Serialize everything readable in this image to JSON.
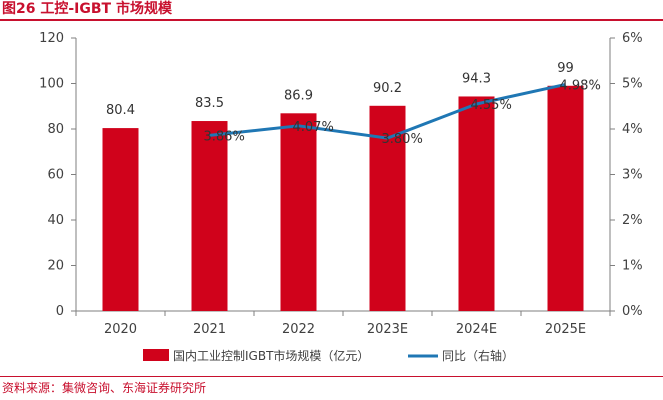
{
  "title": "图26  工控-IGBT 市场规模",
  "source": "资料来源：集微咨询、东海证券研究所",
  "colors": {
    "accent": "#c8102e",
    "bar": "#d0021b",
    "line": "#1f77b4",
    "axis": "#7f7f7f",
    "text": "#404040"
  },
  "chart_data": {
    "type": "bar",
    "categories": [
      "2020",
      "2021",
      "2022",
      "2023E",
      "2024E",
      "2025E"
    ],
    "series": [
      {
        "name": "国内工业控制IGBT市场规模（亿元）",
        "type": "bar",
        "axis": "left",
        "values": [
          80.4,
          83.5,
          86.9,
          90.2,
          94.3,
          99
        ],
        "labels": [
          "80.4",
          "83.5",
          "86.9",
          "90.2",
          "94.3",
          "99"
        ]
      },
      {
        "name": "同比（右轴）",
        "type": "line",
        "axis": "right",
        "values": [
          null,
          3.86,
          4.07,
          3.8,
          4.55,
          4.98
        ],
        "labels": [
          "",
          "3.86%",
          "4.07%",
          "3.80%",
          "4.55%",
          "4.98%"
        ]
      }
    ],
    "y_left": {
      "min": 0,
      "max": 120,
      "ticks": [
        0,
        20,
        40,
        60,
        80,
        100,
        120
      ],
      "tick_labels": [
        "0",
        "20",
        "40",
        "60",
        "80",
        "100",
        "120"
      ]
    },
    "y_right": {
      "min": 0,
      "max": 6,
      "ticks": [
        0,
        1,
        2,
        3,
        4,
        5,
        6
      ],
      "tick_labels": [
        "0%",
        "1%",
        "2%",
        "3%",
        "4%",
        "5%",
        "6%"
      ]
    },
    "legend_position": "bottom",
    "grid": false
  }
}
